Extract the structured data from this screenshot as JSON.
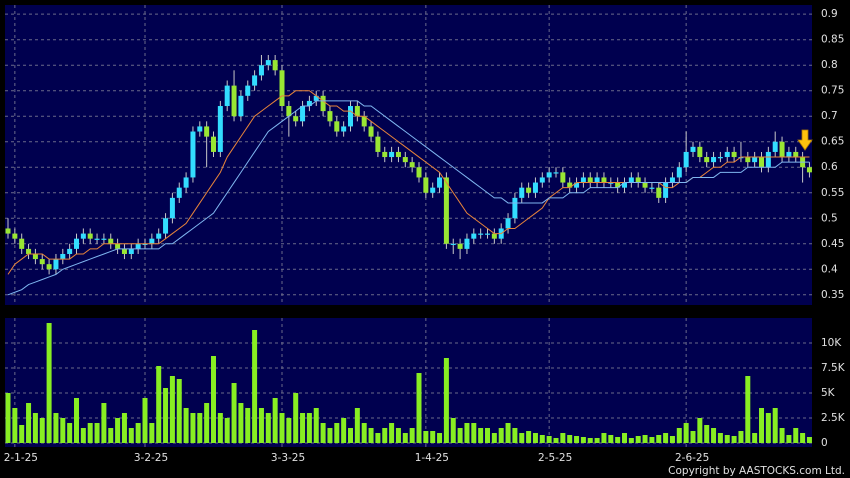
{
  "chart_data": [
    {
      "type": "candlestick",
      "categories": [
        null,
        "2-1-25",
        null,
        null,
        null,
        null,
        null,
        null,
        null,
        null,
        null,
        null,
        null,
        null,
        null,
        null,
        null,
        null,
        null,
        null,
        "3-2-25",
        null,
        null,
        null,
        null,
        null,
        null,
        null,
        null,
        null,
        null,
        null,
        null,
        null,
        null,
        null,
        null,
        null,
        null,
        null,
        "3-3-25",
        null,
        null,
        null,
        null,
        null,
        null,
        null,
        null,
        null,
        null,
        null,
        null,
        null,
        null,
        null,
        null,
        null,
        null,
        null,
        null,
        "1-4-25",
        null,
        null,
        null,
        null,
        null,
        null,
        null,
        null,
        null,
        null,
        null,
        null,
        null,
        null,
        null,
        null,
        null,
        "2-5-25",
        null,
        null,
        null,
        null,
        null,
        null,
        null,
        null,
        null,
        null,
        null,
        null,
        null,
        null,
        null,
        null,
        null,
        null,
        null,
        "2-6-25",
        null,
        null,
        null,
        null,
        null,
        null,
        null,
        null,
        null,
        null,
        null,
        null,
        null,
        null,
        null,
        null,
        null,
        null
      ],
      "open": [
        0.48,
        0.47,
        0.46,
        0.44,
        0.43,
        0.42,
        0.41,
        0.4,
        0.42,
        0.43,
        0.44,
        0.46,
        0.47,
        0.46,
        0.46,
        0.46,
        0.45,
        0.44,
        0.43,
        0.44,
        0.45,
        0.45,
        0.46,
        0.47,
        0.5,
        0.54,
        0.56,
        0.58,
        0.67,
        0.68,
        0.66,
        0.63,
        0.72,
        0.76,
        0.7,
        0.74,
        0.76,
        0.78,
        0.8,
        0.81,
        0.79,
        0.72,
        0.7,
        0.69,
        0.72,
        0.73,
        0.74,
        0.71,
        0.69,
        0.67,
        0.68,
        0.72,
        0.7,
        0.68,
        0.66,
        0.63,
        0.62,
        0.63,
        0.62,
        0.61,
        0.6,
        0.58,
        0.55,
        0.56,
        0.58,
        0.45,
        0.45,
        0.44,
        0.46,
        0.47,
        0.47,
        0.47,
        0.46,
        0.48,
        0.5,
        0.54,
        0.56,
        0.55,
        0.57,
        0.58,
        0.59,
        0.59,
        0.57,
        0.56,
        0.57,
        0.58,
        0.57,
        0.58,
        0.57,
        0.57,
        0.56,
        0.57,
        0.58,
        0.57,
        0.56,
        0.56,
        0.54,
        0.57,
        0.58,
        0.6,
        0.63,
        0.64,
        0.62,
        0.61,
        0.62,
        0.62,
        0.63,
        0.62,
        0.62,
        0.61,
        0.62,
        0.6,
        0.63,
        0.65,
        0.62,
        0.63,
        0.62,
        0.6
      ],
      "high": [
        0.5,
        0.48,
        0.47,
        0.45,
        0.44,
        0.43,
        0.42,
        0.43,
        0.44,
        0.45,
        0.47,
        0.48,
        0.48,
        0.47,
        0.47,
        0.47,
        0.46,
        0.45,
        0.45,
        0.46,
        0.46,
        0.47,
        0.48,
        0.51,
        0.55,
        0.57,
        0.59,
        0.68,
        0.69,
        0.69,
        0.67,
        0.73,
        0.77,
        0.79,
        0.75,
        0.77,
        0.79,
        0.82,
        0.82,
        0.82,
        0.8,
        0.73,
        0.71,
        0.73,
        0.74,
        0.75,
        0.75,
        0.72,
        0.7,
        0.69,
        0.73,
        0.73,
        0.71,
        0.69,
        0.67,
        0.64,
        0.64,
        0.64,
        0.63,
        0.62,
        0.61,
        0.59,
        0.57,
        0.59,
        0.59,
        0.46,
        0.46,
        0.47,
        0.48,
        0.48,
        0.48,
        0.48,
        0.49,
        0.51,
        0.55,
        0.57,
        0.57,
        0.58,
        0.59,
        0.6,
        0.6,
        0.6,
        0.58,
        0.58,
        0.59,
        0.59,
        0.59,
        0.59,
        0.58,
        0.58,
        0.58,
        0.59,
        0.59,
        0.58,
        0.57,
        0.57,
        0.58,
        0.59,
        0.61,
        0.67,
        0.65,
        0.65,
        0.63,
        0.63,
        0.63,
        0.64,
        0.64,
        0.65,
        0.63,
        0.63,
        0.63,
        0.64,
        0.67,
        0.66,
        0.64,
        0.64,
        0.63,
        0.61
      ],
      "low": [
        0.46,
        0.45,
        0.43,
        0.42,
        0.41,
        0.4,
        0.39,
        0.39,
        0.41,
        0.42,
        0.43,
        0.45,
        0.45,
        0.45,
        0.45,
        0.44,
        0.43,
        0.42,
        0.42,
        0.43,
        0.44,
        0.44,
        0.45,
        0.46,
        0.49,
        0.53,
        0.55,
        0.57,
        0.66,
        0.6,
        0.62,
        0.62,
        0.71,
        0.69,
        0.69,
        0.73,
        0.75,
        0.77,
        0.79,
        0.78,
        0.71,
        0.66,
        0.68,
        0.68,
        0.71,
        0.72,
        0.7,
        0.68,
        0.66,
        0.66,
        0.67,
        0.69,
        0.67,
        0.65,
        0.62,
        0.61,
        0.61,
        0.61,
        0.6,
        0.59,
        0.57,
        0.54,
        0.54,
        0.55,
        0.44,
        0.43,
        0.42,
        0.43,
        0.45,
        0.46,
        0.46,
        0.45,
        0.45,
        0.47,
        0.49,
        0.53,
        0.54,
        0.54,
        0.56,
        0.57,
        0.58,
        0.56,
        0.55,
        0.55,
        0.56,
        0.56,
        0.56,
        0.56,
        0.56,
        0.55,
        0.55,
        0.56,
        0.56,
        0.55,
        0.55,
        0.53,
        0.53,
        0.56,
        0.57,
        0.59,
        0.62,
        0.61,
        0.6,
        0.6,
        0.61,
        0.61,
        0.61,
        0.61,
        0.6,
        0.6,
        0.59,
        0.59,
        0.62,
        0.61,
        0.61,
        0.61,
        0.57,
        0.58
      ],
      "close": [
        0.47,
        0.46,
        0.44,
        0.43,
        0.42,
        0.41,
        0.4,
        0.42,
        0.43,
        0.44,
        0.46,
        0.47,
        0.46,
        0.46,
        0.46,
        0.45,
        0.44,
        0.43,
        0.44,
        0.45,
        0.45,
        0.46,
        0.47,
        0.5,
        0.54,
        0.56,
        0.58,
        0.67,
        0.68,
        0.66,
        0.63,
        0.72,
        0.76,
        0.7,
        0.74,
        0.76,
        0.78,
        0.8,
        0.81,
        0.79,
        0.72,
        0.7,
        0.69,
        0.72,
        0.73,
        0.74,
        0.71,
        0.69,
        0.67,
        0.68,
        0.72,
        0.7,
        0.68,
        0.66,
        0.63,
        0.62,
        0.63,
        0.62,
        0.61,
        0.6,
        0.58,
        0.55,
        0.56,
        0.58,
        0.45,
        0.45,
        0.44,
        0.46,
        0.47,
        0.47,
        0.47,
        0.46,
        0.48,
        0.5,
        0.54,
        0.56,
        0.55,
        0.57,
        0.58,
        0.59,
        0.59,
        0.57,
        0.56,
        0.57,
        0.58,
        0.57,
        0.58,
        0.57,
        0.57,
        0.56,
        0.57,
        0.58,
        0.57,
        0.56,
        0.56,
        0.54,
        0.57,
        0.58,
        0.6,
        0.63,
        0.64,
        0.62,
        0.61,
        0.62,
        0.62,
        0.63,
        0.62,
        0.62,
        0.61,
        0.62,
        0.6,
        0.63,
        0.65,
        0.62,
        0.63,
        0.62,
        0.6,
        0.59
      ],
      "up_color": "#33ddff",
      "down_color": "#99e633",
      "wick_color": "#c8c8c8",
      "series": [
        {
          "color": "#e8843a",
          "values": [
            0.39,
            0.41,
            0.42,
            0.43,
            0.43,
            0.43,
            0.42,
            0.42,
            0.42,
            0.42,
            0.43,
            0.43,
            0.44,
            0.44,
            0.45,
            0.45,
            0.45,
            0.45,
            0.45,
            0.45,
            0.45,
            0.45,
            0.45,
            0.46,
            0.47,
            0.48,
            0.49,
            0.51,
            0.53,
            0.55,
            0.57,
            0.59,
            0.62,
            0.64,
            0.66,
            0.68,
            0.7,
            0.71,
            0.72,
            0.73,
            0.74,
            0.74,
            0.75,
            0.75,
            0.75,
            0.74,
            0.73,
            0.72,
            0.72,
            0.71,
            0.71,
            0.7,
            0.7,
            0.69,
            0.68,
            0.67,
            0.66,
            0.65,
            0.64,
            0.63,
            0.62,
            0.61,
            0.6,
            0.59,
            0.57,
            0.55,
            0.53,
            0.51,
            0.5,
            0.49,
            0.48,
            0.47,
            0.47,
            0.48,
            0.48,
            0.49,
            0.5,
            0.51,
            0.52,
            0.54,
            0.55,
            0.56,
            0.56,
            0.57,
            0.57,
            0.57,
            0.57,
            0.57,
            0.57,
            0.57,
            0.57,
            0.57,
            0.57,
            0.57,
            0.57,
            0.57,
            0.56,
            0.56,
            0.57,
            0.57,
            0.58,
            0.58,
            0.59,
            0.6,
            0.6,
            0.61,
            0.61,
            0.62,
            0.62,
            0.62,
            0.62,
            0.62,
            0.62,
            0.62,
            0.62,
            0.62,
            0.62,
            0.62
          ]
        },
        {
          "color": "#7fb6f0",
          "values": [
            0.35,
            0.355,
            0.36,
            0.37,
            0.375,
            0.38,
            0.385,
            0.39,
            0.4,
            0.405,
            0.41,
            0.415,
            0.42,
            0.425,
            0.43,
            0.435,
            0.44,
            0.44,
            0.44,
            0.44,
            0.44,
            0.44,
            0.44,
            0.45,
            0.45,
            0.46,
            0.47,
            0.48,
            0.49,
            0.5,
            0.51,
            0.53,
            0.55,
            0.57,
            0.59,
            0.61,
            0.63,
            0.65,
            0.67,
            0.68,
            0.69,
            0.7,
            0.71,
            0.72,
            0.72,
            0.73,
            0.73,
            0.73,
            0.73,
            0.73,
            0.73,
            0.73,
            0.72,
            0.72,
            0.71,
            0.7,
            0.69,
            0.68,
            0.67,
            0.66,
            0.65,
            0.64,
            0.63,
            0.62,
            0.61,
            0.6,
            0.59,
            0.58,
            0.57,
            0.56,
            0.55,
            0.54,
            0.54,
            0.53,
            0.53,
            0.53,
            0.53,
            0.53,
            0.53,
            0.54,
            0.54,
            0.54,
            0.55,
            0.55,
            0.55,
            0.56,
            0.56,
            0.56,
            0.56,
            0.56,
            0.57,
            0.57,
            0.57,
            0.57,
            0.57,
            0.57,
            0.57,
            0.57,
            0.57,
            0.57,
            0.58,
            0.58,
            0.58,
            0.58,
            0.59,
            0.59,
            0.59,
            0.59,
            0.6,
            0.6,
            0.6,
            0.6,
            0.6,
            0.61,
            0.61,
            0.61,
            0.61,
            0.61
          ]
        }
      ],
      "ylim": [
        0.33,
        0.918
      ],
      "yticks": [
        0.35,
        0.4,
        0.45,
        0.5,
        0.55,
        0.6,
        0.65,
        0.7,
        0.75,
        0.8,
        0.85,
        0.9
      ],
      "grid": true
    },
    {
      "type": "bar",
      "color": "#88ee22",
      "values": [
        5000,
        3500,
        1800,
        4000,
        3000,
        2500,
        12000,
        3000,
        2500,
        2000,
        4500,
        1500,
        2000,
        2000,
        4000,
        1500,
        2500,
        3000,
        1500,
        2000,
        4500,
        2000,
        7700,
        5500,
        6700,
        6400,
        3500,
        3000,
        3000,
        4000,
        8700,
        3000,
        2500,
        6000,
        4000,
        3500,
        11300,
        3500,
        3000,
        4500,
        3000,
        2500,
        5000,
        3000,
        3000,
        3500,
        2000,
        1500,
        2000,
        2500,
        1500,
        3500,
        2000,
        1500,
        1000,
        1500,
        2000,
        1500,
        1000,
        1500,
        7000,
        1200,
        1200,
        1000,
        8500,
        2500,
        1500,
        2000,
        2000,
        1500,
        1500,
        1000,
        1500,
        2000,
        1500,
        1000,
        1200,
        1000,
        800,
        700,
        500,
        1000,
        800,
        700,
        600,
        500,
        500,
        1000,
        800,
        600,
        1000,
        500,
        700,
        800,
        600,
        800,
        1000,
        700,
        1500,
        2000,
        1200,
        2500,
        1800,
        1500,
        1000,
        800,
        700,
        1200,
        6700,
        1000,
        3500,
        3000,
        3500,
        1500,
        800,
        1500,
        1000,
        600
      ],
      "ylim": [
        -400,
        12500
      ],
      "yticks": [
        0,
        {
          "value": 2500,
          "label": "2.5K"
        },
        {
          "value": 5000,
          "label": "5K"
        },
        {
          "value": 7500,
          "label": "7.5K"
        },
        {
          "value": 10000,
          "label": "10K"
        }
      ],
      "grid": true
    }
  ],
  "copyright": "Copyright by AASTOCKS.com Ltd."
}
